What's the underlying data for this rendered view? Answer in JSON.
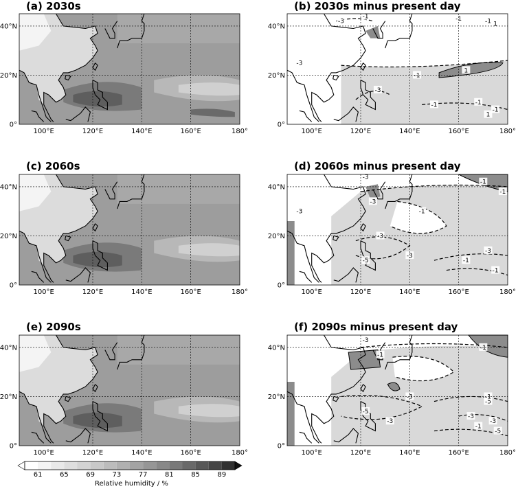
{
  "figure": {
    "panels": [
      {
        "id": "a",
        "title": "(a) 2030s",
        "type": "abs"
      },
      {
        "id": "b",
        "title": "(b) 2030s minus present day",
        "type": "diff"
      },
      {
        "id": "c",
        "title": "(c) 2060s",
        "type": "abs"
      },
      {
        "id": "d",
        "title": "(d) 2060s minus present day",
        "type": "diff"
      },
      {
        "id": "e",
        "title": "(e) 2090s",
        "type": "abs"
      },
      {
        "id": "f",
        "title": "(f) 2090s minus present day",
        "type": "diff"
      }
    ],
    "lon_ticks": [
      "100°E",
      "120°E",
      "140°E",
      "160°E",
      "180°"
    ],
    "lat_ticks": [
      "40°N",
      "20°N",
      "0°"
    ],
    "contour_labels": {
      "b": [
        "-3",
        "-1",
        "-1",
        "-1",
        "1",
        "1",
        "-3",
        "-1",
        "-1",
        "-1",
        "-1",
        "1",
        "-3"
      ],
      "d": [
        "-3",
        "-1",
        "-1",
        "-3",
        "-1",
        "-3",
        "-5",
        "-3",
        "-1",
        "-3",
        "-1",
        "-3"
      ],
      "f": [
        "-3",
        "-1",
        "-1",
        "-3",
        "-5",
        "-3",
        "-5",
        "-3",
        "-1",
        "-3",
        "-5",
        "-1"
      ]
    },
    "colorbar": {
      "ticks": [
        "61",
        "65",
        "69",
        "73",
        "77",
        "81",
        "85",
        "89"
      ],
      "title": "Relative humidity / %",
      "colors": [
        "#ffffff",
        "#f4f4f4",
        "#e9e9e9",
        "#dedede",
        "#d3d3d3",
        "#c8c8c8",
        "#bcbcbc",
        "#b0b0b0",
        "#a3a3a3",
        "#969696",
        "#888888",
        "#797979",
        "#696969",
        "#575757",
        "#454545",
        "#303030"
      ]
    }
  }
}
